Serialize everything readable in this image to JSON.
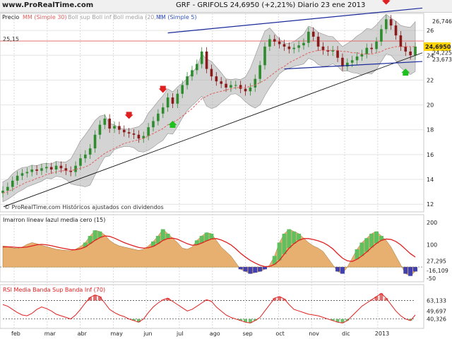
{
  "header": {
    "site": "www.ProRealTime.com",
    "title": "GRF - GRIFOLS    24,6950 (+2,21%)    Diario  23 ene 2013"
  },
  "colors": {
    "price_up": "#2e8b2e",
    "price_down": "#8b1a1a",
    "ma30": "#e06060",
    "bollinger": "#b0b0b0",
    "ma5": "#3050c0",
    "trend_channel": "#1a2a9a",
    "macd_fill": "#e8b070",
    "macd_green": "#60c060",
    "macd_blue": "#4040b0",
    "signal": "#e02020",
    "rsi": "#e02020",
    "arrow_red": "#e02020",
    "arrow_green": "#20c020"
  },
  "chart_data": [
    {
      "type": "candlestick",
      "legend": {
        "precio": "Precio",
        "ma30": "MM (Simple 30)",
        "bollinger": "Boll sup Boll inf Boll media (20, 2)",
        "ma5": "MM (Simple 5)"
      },
      "x_labels": [
        "feb",
        "mar",
        "abr",
        "may",
        "jun",
        "jul",
        "ago",
        "sep",
        "oct",
        "nov",
        "dic",
        "2013"
      ],
      "y_ticks": [
        12,
        14,
        16,
        18,
        20,
        22,
        24,
        26
      ],
      "ylim": [
        11.5,
        27.2
      ],
      "level_label": "25,15",
      "last_label": "24,6950",
      "right_labels": [
        "26,746",
        "24,225",
        "23,673"
      ],
      "watermark": "© ProRealTime.com Históricos ajustados con dividendos",
      "close": [
        13.1,
        13.4,
        13.9,
        14.3,
        14.5,
        14.6,
        14.8,
        14.7,
        14.9,
        15.0,
        14.8,
        15.1,
        14.9,
        14.7,
        14.6,
        15.1,
        15.7,
        16.0,
        16.5,
        17.6,
        18.4,
        18.9,
        18.1,
        18.3,
        18.0,
        17.8,
        17.7,
        17.6,
        17.3,
        17.5,
        18.2,
        18.7,
        19.3,
        19.8,
        20.6,
        20.1,
        20.9,
        21.6,
        22.3,
        22.8,
        23.3,
        24.3,
        22.9,
        22.3,
        21.9,
        21.7,
        21.4,
        21.6,
        21.6,
        21.3,
        21.1,
        21.4,
        22.1,
        23.2,
        24.7,
        25.3,
        25.1,
        24.9,
        24.7,
        24.5,
        24.6,
        24.8,
        25.0,
        25.9,
        25.5,
        24.7,
        24.4,
        24.3,
        24.4,
        23.8,
        23.1,
        23.4,
        23.6,
        23.9,
        24.1,
        24.6,
        24.5,
        25.1,
        26.1,
        26.9,
        26.4,
        25.6,
        24.7,
        24.3,
        24.0,
        24.7
      ],
      "ma30": [
        12.9,
        13.0,
        13.2,
        13.4,
        13.6,
        13.8,
        13.9,
        14.1,
        14.2,
        14.4,
        14.5,
        14.6,
        14.7,
        14.7,
        14.7,
        14.8,
        14.9,
        15.0,
        15.2,
        15.5,
        15.8,
        16.1,
        16.3,
        16.5,
        16.7,
        16.9,
        17.0,
        17.1,
        17.2,
        17.3,
        17.5,
        17.7,
        17.9,
        18.1,
        18.4,
        18.6,
        18.8,
        19.1,
        19.4,
        19.7,
        20.1,
        20.5,
        20.7,
        20.9,
        21.0,
        21.1,
        21.2,
        21.3,
        21.4,
        21.4,
        21.4,
        21.5,
        21.6,
        21.8,
        22.0,
        22.3,
        22.6,
        22.9,
        23.1,
        23.4,
        23.6,
        23.8,
        24.0,
        24.2,
        24.3,
        24.4,
        24.4,
        24.4,
        24.4,
        24.4,
        24.3,
        24.3,
        24.2,
        24.2,
        24.1,
        24.1,
        24.1,
        24.2,
        24.3,
        24.5,
        24.6,
        24.7,
        24.7,
        24.7,
        24.7,
        24.7
      ],
      "boll_width": [
        0.8,
        0.8,
        0.9,
        0.9,
        0.9,
        0.8,
        0.8,
        0.7,
        0.7,
        0.6,
        0.6,
        0.6,
        0.6,
        0.7,
        1.0,
        1.4,
        1.8,
        2.1,
        2.3,
        2.2,
        2.0,
        1.7,
        1.3,
        1.0,
        0.8,
        0.7,
        0.7,
        0.8,
        1.0,
        1.2,
        1.5,
        1.6,
        1.7,
        1.8,
        1.8,
        1.7,
        1.6,
        1.4,
        1.3,
        1.3,
        1.4,
        1.7,
        1.9,
        1.9,
        1.6,
        1.2,
        0.8,
        0.6,
        0.6,
        0.7,
        1.0,
        1.5,
        2.1,
        2.5,
        2.6,
        2.4,
        1.9,
        1.4,
        1.1,
        1.0,
        1.0,
        1.1,
        1.2,
        1.3,
        1.3,
        1.3,
        1.3,
        1.2,
        1.1,
        1.0,
        1.0,
        1.1,
        1.3,
        1.5,
        1.7,
        1.8,
        1.8,
        1.8,
        1.7,
        1.6,
        1.5,
        1.6,
        1.7,
        1.8,
        1.9,
        2.0
      ],
      "arrows_down_index": [
        26,
        33,
        79
      ],
      "arrows_up_index": [
        35,
        83
      ]
    },
    {
      "type": "area",
      "legend": "Imarron lineav lazul media cero (15)",
      "y_ticks": [
        200,
        100,
        -50
      ],
      "right_labels": [
        "27,295",
        "-16,109"
      ],
      "values": [
        95,
        92,
        86,
        84,
        90,
        102,
        110,
        105,
        98,
        92,
        86,
        80,
        77,
        75,
        73,
        80,
        92,
        110,
        140,
        165,
        160,
        145,
        120,
        105,
        95,
        90,
        85,
        80,
        75,
        80,
        95,
        115,
        140,
        170,
        150,
        130,
        110,
        85,
        80,
        90,
        120,
        140,
        155,
        150,
        120,
        90,
        70,
        50,
        20,
        -10,
        -20,
        -30,
        -25,
        -20,
        -10,
        10,
        50,
        110,
        150,
        170,
        160,
        150,
        130,
        110,
        95,
        85,
        70,
        40,
        10,
        -20,
        -30,
        0,
        40,
        80,
        110,
        130,
        150,
        160,
        140,
        120,
        90,
        50,
        10,
        -30,
        -40,
        -20
      ],
      "signal": [
        90,
        91,
        90,
        88,
        88,
        90,
        95,
        100,
        102,
        100,
        96,
        91,
        86,
        82,
        78,
        78,
        82,
        90,
        105,
        120,
        132,
        140,
        138,
        130,
        120,
        110,
        102,
        95,
        88,
        85,
        87,
        93,
        105,
        120,
        128,
        130,
        125,
        115,
        105,
        98,
        100,
        108,
        118,
        126,
        128,
        122,
        112,
        100,
        82,
        62,
        45,
        30,
        18,
        8,
        2,
        3,
        12,
        30,
        58,
        85,
        105,
        120,
        128,
        128,
        124,
        118,
        110,
        98,
        82,
        60,
        40,
        28,
        25,
        35,
        50,
        68,
        88,
        106,
        120,
        126,
        124,
        115,
        100,
        80,
        60,
        45
      ]
    },
    {
      "type": "line",
      "legend": "RSI Media Banda Sup Banda Inf (70)",
      "y_ticks": [
        63.133,
        49.697,
        40.326
      ],
      "right_labels": [
        "63,133",
        "49,697",
        "40,326"
      ],
      "values": [
        58,
        56,
        52,
        48,
        45,
        44,
        47,
        52,
        55,
        53,
        50,
        46,
        44,
        42,
        40,
        45,
        52,
        60,
        67,
        70,
        68,
        60,
        52,
        48,
        45,
        43,
        40,
        38,
        36,
        40,
        48,
        55,
        60,
        64,
        66,
        62,
        58,
        54,
        50,
        52,
        56,
        60,
        64,
        62,
        55,
        50,
        45,
        42,
        40,
        38,
        36,
        35,
        38,
        42,
        50,
        58,
        66,
        68,
        65,
        58,
        52,
        50,
        48,
        46,
        45,
        44,
        42,
        40,
        38,
        36,
        35,
        38,
        44,
        50,
        56,
        60,
        64,
        68,
        72,
        66,
        58,
        50,
        44,
        40,
        38,
        45
      ],
      "upper": [
        63,
        63,
        63,
        63,
        63,
        63,
        63,
        63,
        63,
        63,
        63,
        63,
        63,
        63,
        63,
        63,
        63,
        63,
        63,
        63,
        63,
        63,
        63,
        63,
        63,
        63,
        63,
        63,
        63,
        63,
        63,
        63,
        63,
        63,
        63,
        63,
        63,
        63,
        63,
        63,
        63,
        63,
        63,
        63,
        63,
        63,
        63,
        63,
        63,
        63,
        63,
        63,
        63,
        63,
        63,
        63,
        63,
        63,
        63,
        63,
        63,
        63,
        63,
        63,
        63,
        63,
        63,
        63,
        63,
        63,
        63,
        63,
        63,
        63,
        63,
        63,
        63,
        63,
        63,
        63,
        63,
        63,
        63,
        63,
        63,
        63
      ],
      "lower": [
        40,
        40,
        40,
        40,
        40,
        40,
        40,
        40,
        40,
        40,
        40,
        40,
        40,
        40,
        40,
        40,
        40,
        40,
        40,
        40,
        40,
        40,
        40,
        40,
        40,
        40,
        40,
        40,
        40,
        40,
        40,
        40,
        40,
        40,
        40,
        40,
        40,
        40,
        40,
        40,
        40,
        40,
        40,
        40,
        40,
        40,
        40,
        40,
        40,
        40,
        40,
        40,
        40,
        40,
        40,
        40,
        40,
        40,
        40,
        40,
        40,
        40,
        40,
        40,
        40,
        40,
        40,
        40,
        40,
        40,
        40,
        40,
        40,
        40,
        40,
        40,
        40,
        40,
        40,
        40,
        40,
        40,
        40,
        40,
        40,
        40
      ]
    }
  ]
}
